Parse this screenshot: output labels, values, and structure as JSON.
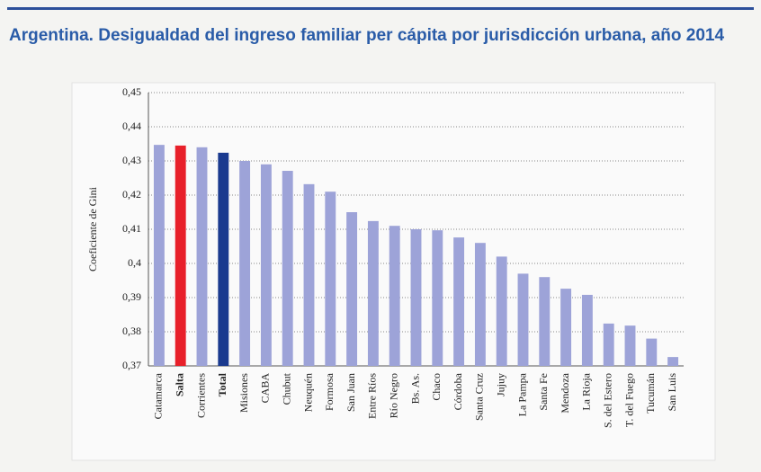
{
  "chart_data": {
    "type": "bar",
    "title": "Argentina. Desigualdad del ingreso familiar per cápita por jurisdicción urbana, año 2014",
    "y_label": "Coeficiente de Gini",
    "categories": [
      "Catamarca",
      "Salta",
      "Corrientes",
      "Total",
      "Misiones",
      "CABA",
      "Chubut",
      "Neuquén",
      "Formosa",
      "San Juan",
      "Entre Ríos",
      "Río Negro",
      "Bs. As.",
      "Chaco",
      "Córdoba",
      "Santa Cruz",
      "Jujuy",
      "La Pampa",
      "Santa Fe",
      "Mendoza",
      "La Rioja",
      "S. del Estero",
      "T. del Fuego",
      "Tucumán",
      "San Luis"
    ],
    "values": [
      0.4347,
      0.4345,
      0.434,
      0.4324,
      0.43,
      0.429,
      0.4271,
      0.4232,
      0.421,
      0.415,
      0.4124,
      0.411,
      0.41,
      0.4097,
      0.4076,
      0.406,
      0.402,
      0.397,
      0.396,
      0.3926,
      0.3908,
      0.3824,
      0.3818,
      0.378,
      0.3726
    ],
    "color": "#9da3d8",
    "colors": [
      "#9da3d8",
      "#e8202a",
      "#9da3d8",
      "#1a3a8f",
      "#9da3d8",
      "#9da3d8",
      "#9da3d8",
      "#9da3d8",
      "#9da3d8",
      "#9da3d8",
      "#9da3d8",
      "#9da3d8",
      "#9da3d8",
      "#9da3d8",
      "#9da3d8",
      "#9da3d8",
      "#9da3d8",
      "#9da3d8",
      "#9da3d8",
      "#9da3d8",
      "#9da3d8",
      "#9da3d8",
      "#9da3d8",
      "#9da3d8",
      "#9da3d8"
    ],
    "ylim": [
      0.37,
      0.45
    ],
    "yticks": [
      {
        "value": 0.37,
        "label": "0,37"
      },
      {
        "value": 0.38,
        "label": "0,38"
      },
      {
        "value": 0.39,
        "label": "0,39"
      },
      {
        "value": 0.4,
        "label": "0,4"
      },
      {
        "value": 0.41,
        "label": "0,41"
      },
      {
        "value": 0.42,
        "label": "0,42"
      },
      {
        "value": 0.43,
        "label": "0,43"
      },
      {
        "value": 0.44,
        "label": "0,44"
      },
      {
        "value": 0.45,
        "label": "0,45"
      }
    ],
    "grid": true
  }
}
